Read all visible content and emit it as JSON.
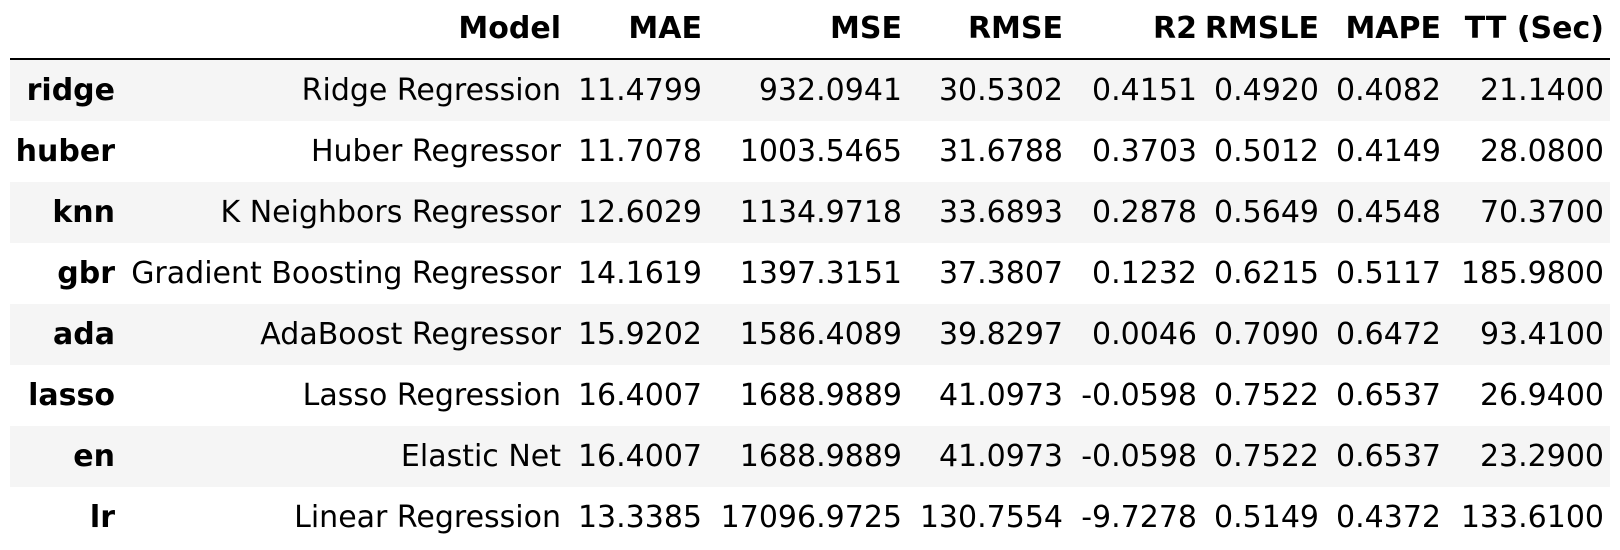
{
  "table": {
    "index_header": "",
    "columns": [
      "Model",
      "MAE",
      "MSE",
      "RMSE",
      "R2",
      "RMSLE",
      "MAPE",
      "TT (Sec)"
    ],
    "rows": [
      {
        "id": "ridge",
        "model": "Ridge Regression",
        "mae": "11.4799",
        "mse": "932.0941",
        "rmse": "30.5302",
        "r2": "0.4151",
        "rmsle": "0.4920",
        "mape": "0.4082",
        "tt": "21.1400"
      },
      {
        "id": "huber",
        "model": "Huber Regressor",
        "mae": "11.7078",
        "mse": "1003.5465",
        "rmse": "31.6788",
        "r2": "0.3703",
        "rmsle": "0.5012",
        "mape": "0.4149",
        "tt": "28.0800"
      },
      {
        "id": "knn",
        "model": "K Neighbors Regressor",
        "mae": "12.6029",
        "mse": "1134.9718",
        "rmse": "33.6893",
        "r2": "0.2878",
        "rmsle": "0.5649",
        "mape": "0.4548",
        "tt": "70.3700"
      },
      {
        "id": "gbr",
        "model": "Gradient Boosting Regressor",
        "mae": "14.1619",
        "mse": "1397.3151",
        "rmse": "37.3807",
        "r2": "0.1232",
        "rmsle": "0.6215",
        "mape": "0.5117",
        "tt": "185.9800"
      },
      {
        "id": "ada",
        "model": "AdaBoost Regressor",
        "mae": "15.9202",
        "mse": "1586.4089",
        "rmse": "39.8297",
        "r2": "0.0046",
        "rmsle": "0.7090",
        "mape": "0.6472",
        "tt": "93.4100"
      },
      {
        "id": "lasso",
        "model": "Lasso Regression",
        "mae": "16.4007",
        "mse": "1688.9889",
        "rmse": "41.0973",
        "r2": "-0.0598",
        "rmsle": "0.7522",
        "mape": "0.6537",
        "tt": "26.9400"
      },
      {
        "id": "en",
        "model": "Elastic Net",
        "mae": "16.4007",
        "mse": "1688.9889",
        "rmse": "41.0973",
        "r2": "-0.0598",
        "rmsle": "0.7522",
        "mape": "0.6537",
        "tt": "23.2900"
      },
      {
        "id": "lr",
        "model": "Linear Regression",
        "mae": "13.3385",
        "mse": "17096.9725",
        "rmse": "130.7554",
        "r2": "-9.7278",
        "rmsle": "0.5149",
        "mape": "0.4372",
        "tt": "133.6100"
      }
    ]
  },
  "colors": {
    "text": "#000000",
    "shaded_row": "#f5f5f5",
    "background": "#ffffff"
  }
}
